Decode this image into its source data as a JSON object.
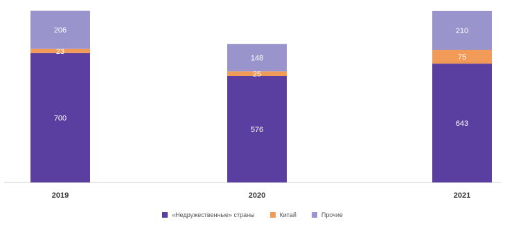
{
  "chart_data": {
    "type": "bar",
    "stacked": true,
    "categories": [
      "2019",
      "2020",
      "2021"
    ],
    "series": [
      {
        "name": "«Недружественные» страны",
        "values": [
          700,
          576,
          643
        ],
        "color": "#5b3fa0"
      },
      {
        "name": "Китай",
        "values": [
          23,
          25,
          75
        ],
        "color": "#f29a58"
      },
      {
        "name": "Прочие",
        "values": [
          206,
          148,
          210
        ],
        "color": "#9a94cc"
      }
    ],
    "ylim": [
      0,
      950
    ],
    "grid": false,
    "legend_position": "bottom",
    "value_label_color": "#ffffff",
    "baseline_color": "#cfcfcf"
  }
}
